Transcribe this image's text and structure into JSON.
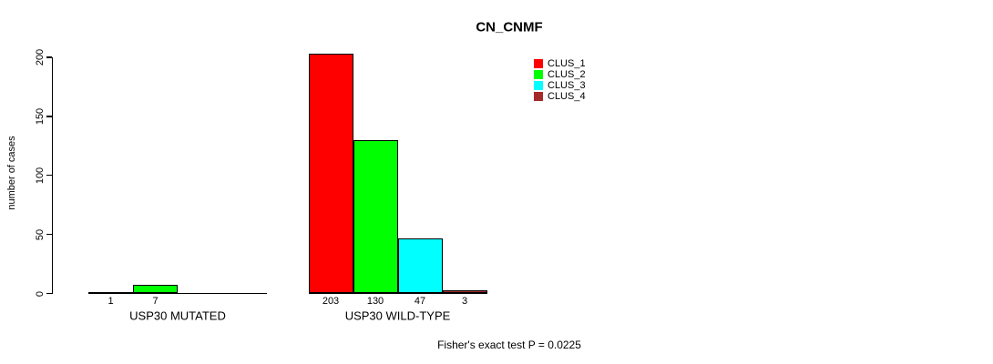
{
  "chart_data": {
    "type": "bar",
    "title": "CN_CNMF",
    "ylabel": "number of cases",
    "ylim": [
      0,
      200
    ],
    "yticks": [
      0,
      50,
      100,
      150,
      200
    ],
    "grid": false,
    "legend_position": "top-right",
    "legend": [
      {
        "label": "CLUS_1",
        "color": "#FF0000"
      },
      {
        "label": "CLUS_2",
        "color": "#00FF00"
      },
      {
        "label": "CLUS_3",
        "color": "#00FFFF"
      },
      {
        "label": "CLUS_4",
        "color": "#A52A2A"
      }
    ],
    "groups": [
      {
        "label": "USP30 MUTATED",
        "values": [
          1,
          7,
          0,
          0
        ],
        "bar_labels": [
          "1",
          "7",
          "",
          ""
        ]
      },
      {
        "label": "USP30 WILD-TYPE",
        "values": [
          203,
          130,
          47,
          3
        ],
        "bar_labels": [
          "203",
          "130",
          "47",
          "3"
        ]
      }
    ],
    "annotation": "Fisher's exact test P = 0.0225"
  },
  "colors": {
    "background": "#FFFFFF",
    "axis": "#000000",
    "text": "#000000"
  }
}
